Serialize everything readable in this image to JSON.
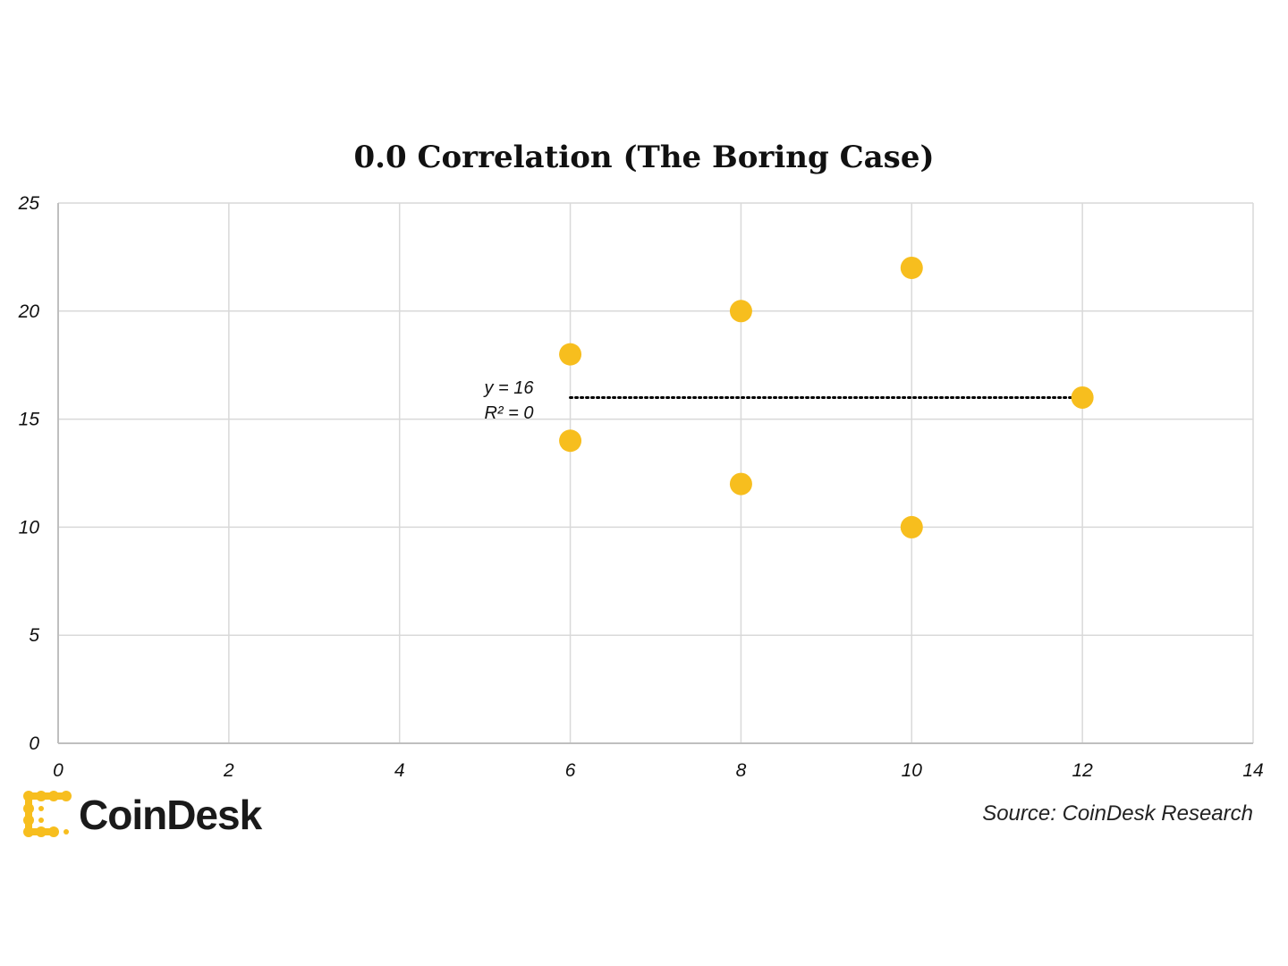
{
  "colors": {
    "marker": "#F7BE1E",
    "grid": "#D9D9D9",
    "axis": "#BFBFBF",
    "trendline": "#000000",
    "text": "#111111"
  },
  "chart_data": {
    "type": "scatter",
    "title": "0.0 Correlation (The Boring Case)",
    "xlabel": "",
    "ylabel": "",
    "xlim": [
      0,
      14
    ],
    "ylim": [
      0,
      25
    ],
    "x_ticks": [
      0,
      2,
      4,
      6,
      8,
      10,
      12,
      14
    ],
    "y_ticks": [
      0,
      5,
      10,
      15,
      20,
      25
    ],
    "grid": true,
    "legend": "none",
    "points": [
      {
        "x": 6,
        "y": 18
      },
      {
        "x": 6,
        "y": 14
      },
      {
        "x": 8,
        "y": 20
      },
      {
        "x": 8,
        "y": 12
      },
      {
        "x": 10,
        "y": 22
      },
      {
        "x": 10,
        "y": 10
      },
      {
        "x": 12,
        "y": 16
      }
    ],
    "trendline": {
      "style": "dotted",
      "x_range": [
        6,
        12
      ],
      "y": 16,
      "equation": "y = 16",
      "r_squared": "R² = 0"
    }
  },
  "branding": {
    "logo_text": "CoinDesk",
    "logo_icon": "coindesk-logo-icon"
  },
  "source_text": "Source: CoinDesk Research"
}
